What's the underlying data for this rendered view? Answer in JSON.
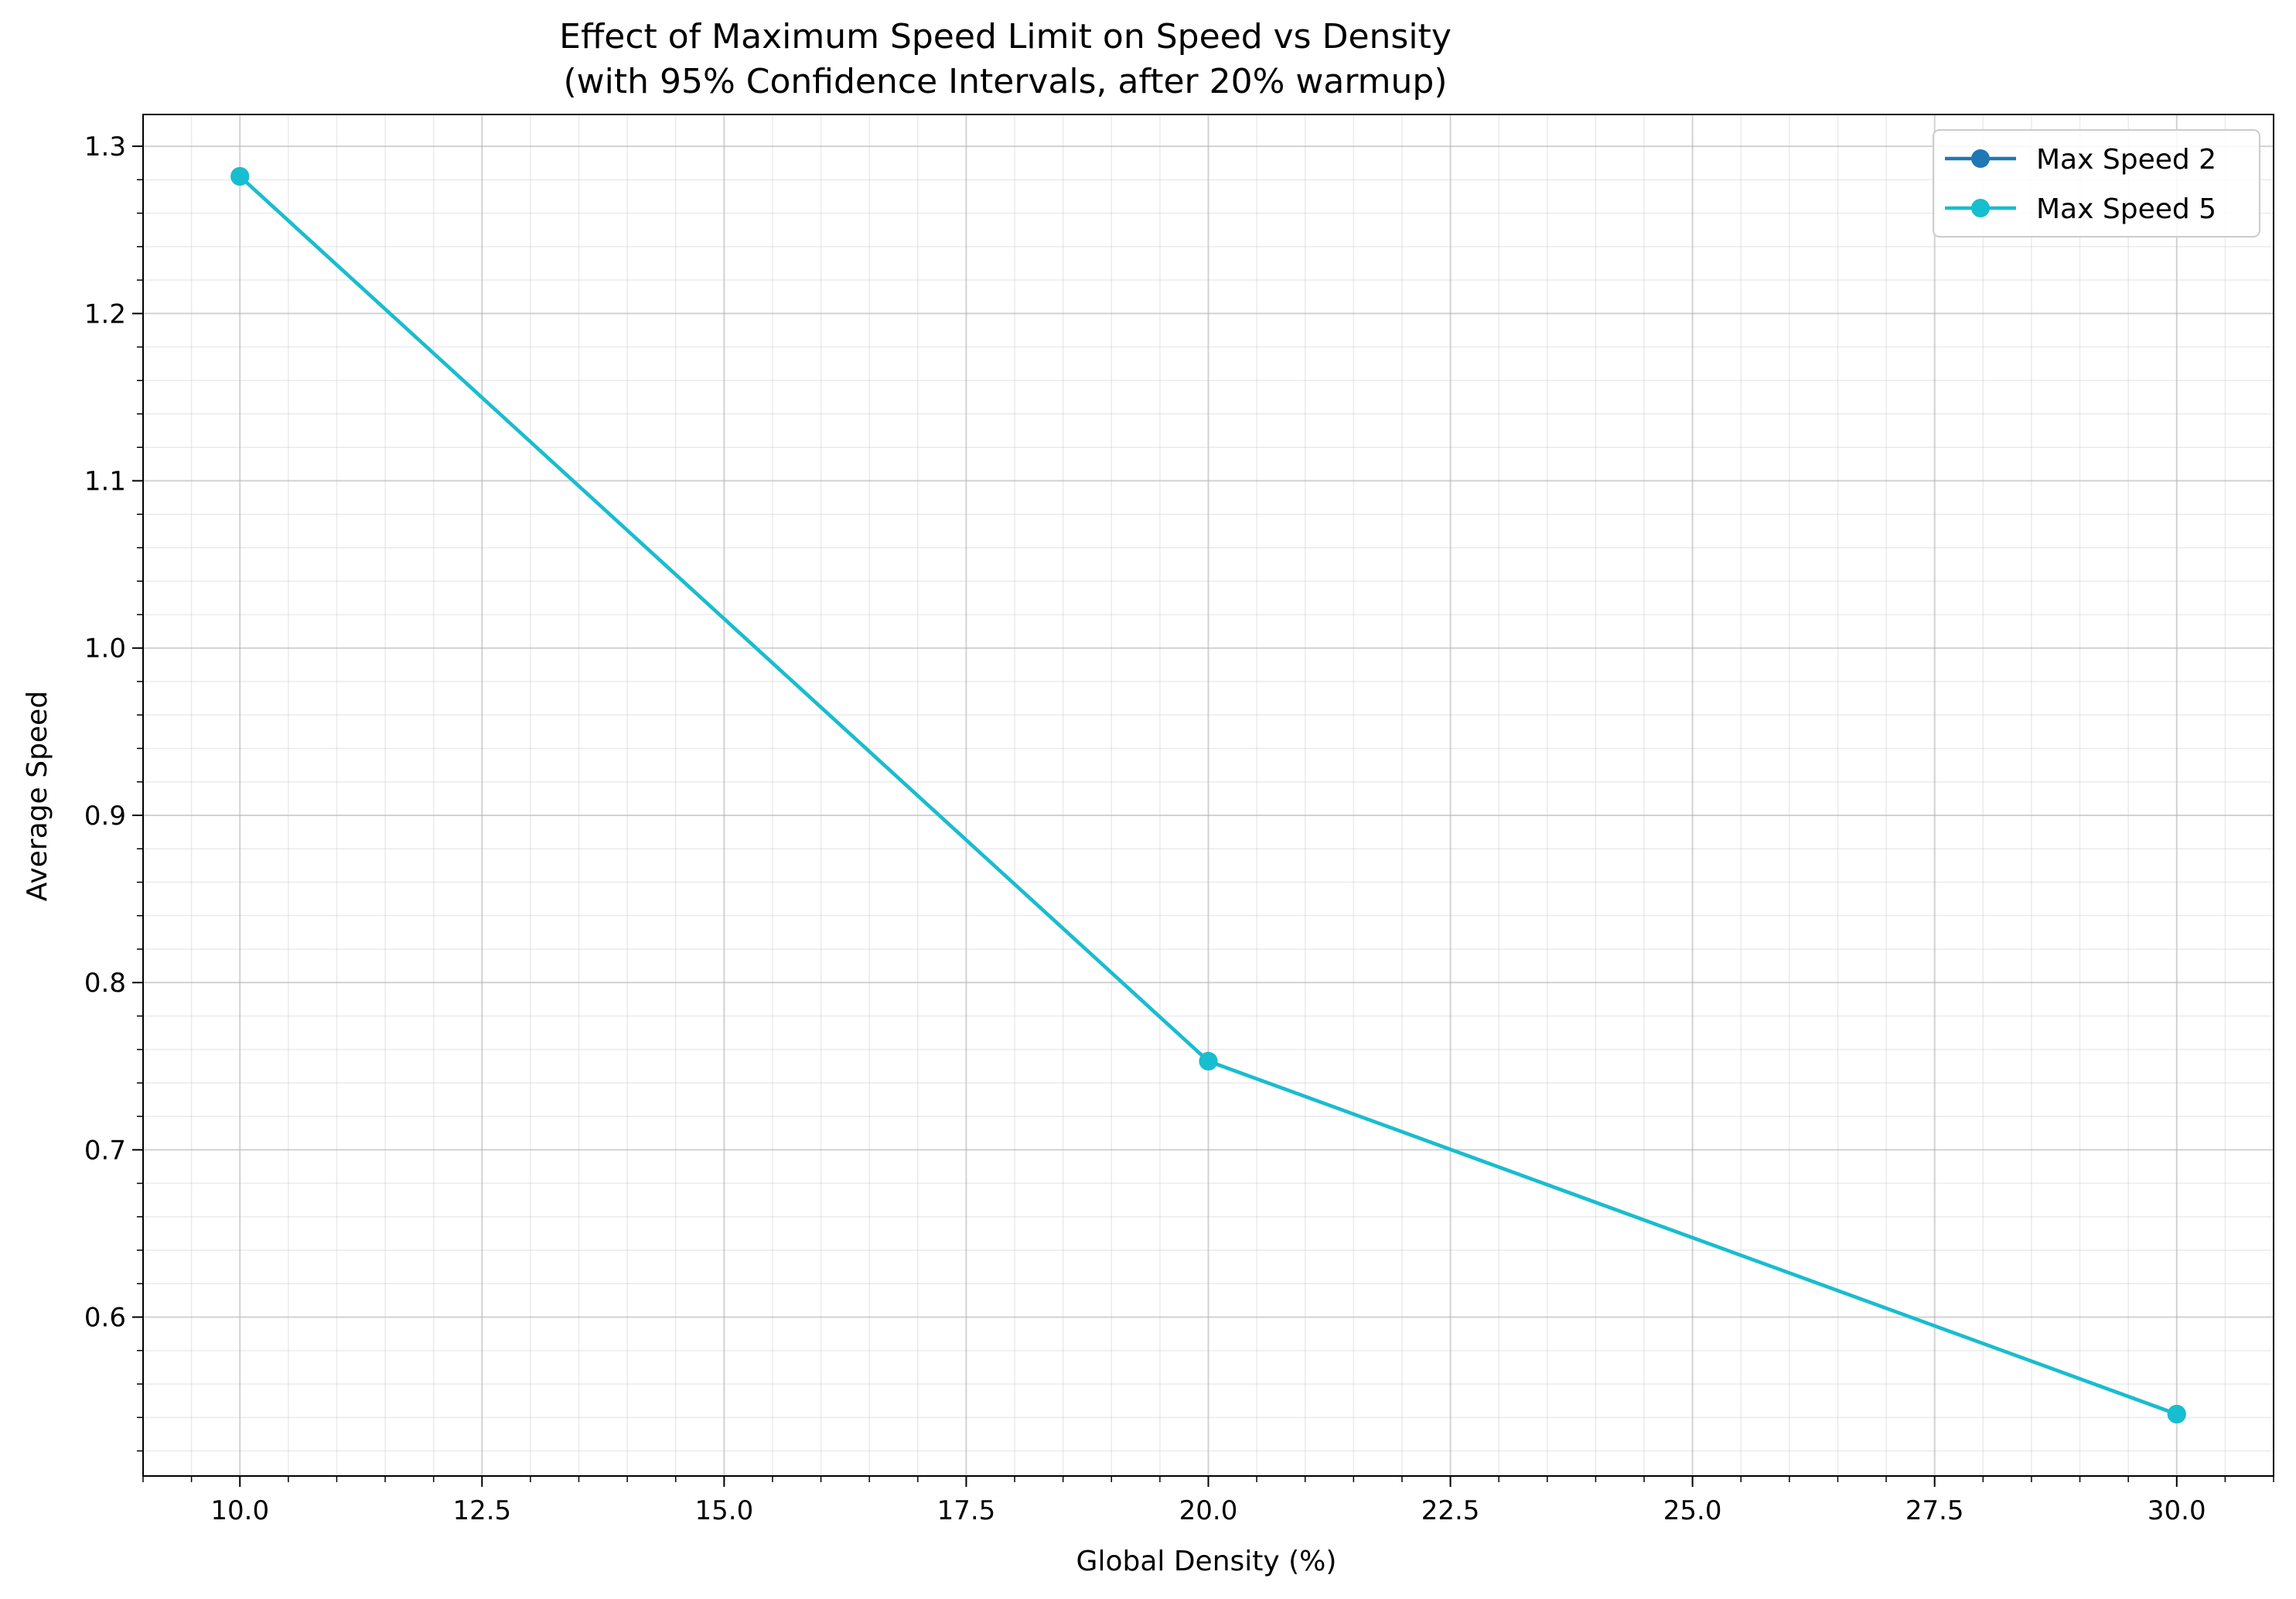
{
  "chart_data": {
    "type": "line",
    "title": "Effect of Maximum Speed Limit on Speed vs Density",
    "subtitle": "(with 95% Confidence Intervals, after 20% warmup)",
    "xlabel": "Global Density (%)",
    "ylabel": "Average Speed",
    "xlim": [
      9.0,
      31.0
    ],
    "ylim": [
      0.505,
      1.319
    ],
    "x_ticks": [
      10.0,
      12.5,
      15.0,
      17.5,
      20.0,
      22.5,
      25.0,
      27.5,
      30.0
    ],
    "x_tick_labels": [
      "10.0",
      "12.5",
      "15.0",
      "17.5",
      "20.0",
      "22.5",
      "25.0",
      "27.5",
      "30.0"
    ],
    "y_ticks": [
      0.6,
      0.7,
      0.8,
      0.9,
      1.0,
      1.1,
      1.2,
      1.3
    ],
    "y_tick_labels": [
      "0.6",
      "0.7",
      "0.8",
      "0.9",
      "1.0",
      "1.1",
      "1.2",
      "1.3"
    ],
    "grid": true,
    "minor_grid": true,
    "legend_position": "top-right",
    "series": [
      {
        "name": "Max Speed 2",
        "color": "#1f77b4",
        "x": [
          10,
          20,
          30
        ],
        "y": [
          1.282,
          0.753,
          0.542
        ]
      },
      {
        "name": "Max Speed 5",
        "color": "#17becf",
        "x": [
          10,
          20,
          30
        ],
        "y": [
          1.282,
          0.753,
          0.542
        ]
      }
    ]
  }
}
